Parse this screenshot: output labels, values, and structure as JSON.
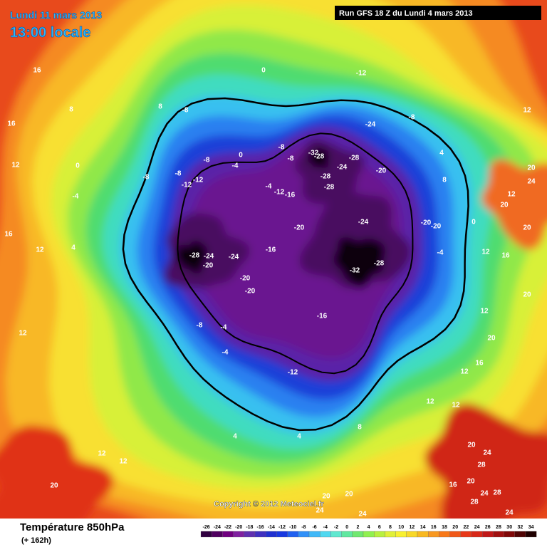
{
  "header": {
    "date": "Lundi 11 mars 2013",
    "time": "13:00 locale",
    "run": "Run GFS 18 Z du Lundi 4 mars 2013"
  },
  "copyright": "Copyright © 2012 Meteociel.fr",
  "footer": {
    "title": "Température 850hPa",
    "lead": "(+ 162h)"
  },
  "legend": {
    "values": [
      -26,
      -24,
      -22,
      -20,
      -18,
      -16,
      -14,
      -12,
      -10,
      -8,
      -6,
      -4,
      -2,
      0,
      2,
      4,
      6,
      8,
      10,
      12,
      14,
      16,
      18,
      20,
      22,
      24,
      26,
      28,
      30,
      32,
      34
    ],
    "colors": [
      "#300040",
      "#500060",
      "#700080",
      "#8020a0",
      "#6030b0",
      "#4030c0",
      "#2030d0",
      "#1838e0",
      "#2060f0",
      "#3090f8",
      "#40b8f8",
      "#50d8f0",
      "#60e8d0",
      "#60e8a0",
      "#70e870",
      "#90f050",
      "#b8f040",
      "#e0f038",
      "#f8f030",
      "#f8d828",
      "#f8b820",
      "#f89820",
      "#f87818",
      "#f05818",
      "#e83818",
      "#d82818",
      "#c01818",
      "#a01010",
      "#800808",
      "#500404",
      "#200000"
    ]
  },
  "contour_labels": [
    -32,
    -28,
    -24,
    -28,
    -28,
    -28,
    -20,
    -24,
    -12,
    -8,
    -20,
    -24,
    -20,
    -20,
    -4,
    -32,
    -28,
    -16,
    -28,
    -24,
    -24,
    -20,
    -20,
    -20,
    -16,
    -12,
    -8,
    -4,
    -4,
    -8,
    -8,
    -8,
    -8,
    -12,
    -12,
    -4,
    0,
    0,
    -8,
    -8,
    -4,
    -12,
    -16,
    16,
    8,
    8,
    16,
    12,
    12,
    4,
    -4,
    0,
    16,
    12,
    12,
    16,
    20,
    12,
    20,
    24,
    20,
    20,
    12,
    20,
    16,
    12,
    12,
    12,
    4,
    4,
    8,
    12,
    12,
    20,
    20,
    24,
    28,
    20,
    24,
    28,
    28,
    24,
    20,
    20,
    24,
    24,
    16,
    4,
    8,
    0,
    12
  ]
}
